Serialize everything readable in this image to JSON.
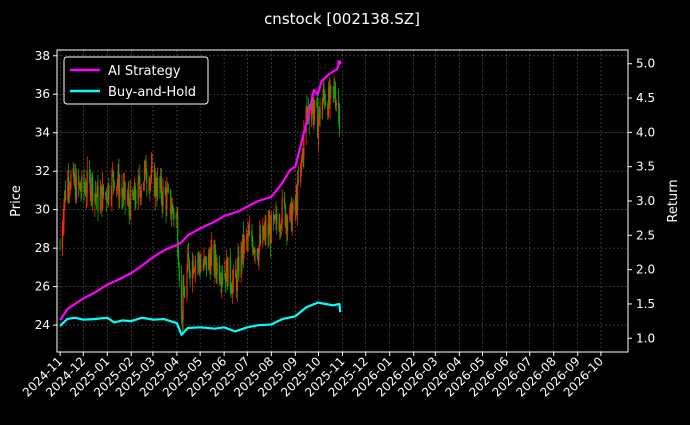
{
  "chart_data": {
    "type": "line",
    "title": "cnstock [002138.SZ]",
    "ylabel": "Price",
    "y2label": "Return",
    "grid": true,
    "legend_position": "top-left",
    "background": "#000000",
    "colors": {
      "ai_strategy": "#ff00ff",
      "buy_and_hold": "#00ffff",
      "candle_up": "#ff2a00",
      "candle_down": "#00b400",
      "grid": "#5a5a5a",
      "axis": "#ffffff"
    },
    "x_tick_labels": [
      "2024-11",
      "2024-12",
      "2025-01",
      "2025-02",
      "2025-03",
      "2025-04",
      "2025-05",
      "2025-06",
      "2025-07",
      "2025-08",
      "2025-09",
      "2025-10",
      "2025-11",
      "2025-12",
      "2026-01",
      "2026-02",
      "2026-03",
      "2026-04",
      "2026-05",
      "2026-06",
      "2026-07",
      "2026-08",
      "2026-09",
      "2026-10"
    ],
    "xlim": [
      "2024-10-28",
      "2026-11-05"
    ],
    "y_ticks": [
      24,
      26,
      28,
      30,
      32,
      34,
      36,
      38
    ],
    "ylim": [
      22.6,
      38.3
    ],
    "y2_ticks": [
      "1.0",
      "1.5",
      "2.0",
      "2.5",
      "3.0",
      "3.5",
      "4.0",
      "4.5",
      "5.0"
    ],
    "y2lim": [
      0.8,
      5.2
    ],
    "series": [
      {
        "name": "AI Strategy",
        "axis": "right",
        "points": [
          [
            "2024-11-01",
            1.26
          ],
          [
            "2024-11-10",
            1.42
          ],
          [
            "2024-11-20",
            1.5
          ],
          [
            "2024-12-01",
            1.58
          ],
          [
            "2024-12-15",
            1.66
          ],
          [
            "2025-01-01",
            1.78
          ],
          [
            "2025-01-15",
            1.85
          ],
          [
            "2025-02-01",
            1.95
          ],
          [
            "2025-02-15",
            2.06
          ],
          [
            "2025-03-01",
            2.18
          ],
          [
            "2025-03-15",
            2.28
          ],
          [
            "2025-04-01",
            2.36
          ],
          [
            "2025-04-07",
            2.4
          ],
          [
            "2025-04-15",
            2.5
          ],
          [
            "2025-05-01",
            2.6
          ],
          [
            "2025-05-20",
            2.7
          ],
          [
            "2025-06-01",
            2.78
          ],
          [
            "2025-06-20",
            2.85
          ],
          [
            "2025-07-01",
            2.92
          ],
          [
            "2025-07-15",
            3.0
          ],
          [
            "2025-08-01",
            3.06
          ],
          [
            "2025-08-15",
            3.26
          ],
          [
            "2025-08-25",
            3.45
          ],
          [
            "2025-09-01",
            3.5
          ],
          [
            "2025-09-10",
            3.9
          ],
          [
            "2025-09-20",
            4.35
          ],
          [
            "2025-09-25",
            4.62
          ],
          [
            "2025-09-30",
            4.55
          ],
          [
            "2025-10-05",
            4.75
          ],
          [
            "2025-10-15",
            4.85
          ],
          [
            "2025-10-25",
            4.92
          ],
          [
            "2025-10-28",
            5.02
          ]
        ]
      },
      {
        "name": "Buy-and-Hold",
        "axis": "right",
        "points": [
          [
            "2024-11-01",
            1.18
          ],
          [
            "2024-11-10",
            1.28
          ],
          [
            "2024-11-20",
            1.3
          ],
          [
            "2024-12-01",
            1.27
          ],
          [
            "2024-12-15",
            1.28
          ],
          [
            "2025-01-01",
            1.3
          ],
          [
            "2025-01-10",
            1.23
          ],
          [
            "2025-01-20",
            1.26
          ],
          [
            "2025-02-01",
            1.25
          ],
          [
            "2025-02-15",
            1.3
          ],
          [
            "2025-03-01",
            1.27
          ],
          [
            "2025-03-15",
            1.28
          ],
          [
            "2025-04-01",
            1.22
          ],
          [
            "2025-04-07",
            1.05
          ],
          [
            "2025-04-15",
            1.15
          ],
          [
            "2025-05-01",
            1.16
          ],
          [
            "2025-05-20",
            1.14
          ],
          [
            "2025-06-01",
            1.16
          ],
          [
            "2025-06-15",
            1.1
          ],
          [
            "2025-07-01",
            1.16
          ],
          [
            "2025-07-15",
            1.19
          ],
          [
            "2025-08-01",
            1.2
          ],
          [
            "2025-08-15",
            1.28
          ],
          [
            "2025-09-01",
            1.32
          ],
          [
            "2025-09-15",
            1.45
          ],
          [
            "2025-09-30",
            1.52
          ],
          [
            "2025-10-10",
            1.5
          ],
          [
            "2025-10-20",
            1.48
          ],
          [
            "2025-10-28",
            1.5
          ],
          [
            "2025-10-29",
            1.38
          ]
        ]
      }
    ],
    "price_series": {
      "name": "Price",
      "axis": "left",
      "style": "candlestick",
      "points": [
        [
          "2024-11-01",
          28.0
        ],
        [
          "2024-11-06",
          30.5
        ],
        [
          "2024-11-12",
          31.8
        ],
        [
          "2024-11-20",
          31.2
        ],
        [
          "2024-12-01",
          31.0
        ],
        [
          "2024-12-10",
          31.5
        ],
        [
          "2024-12-20",
          30.5
        ],
        [
          "2025-01-01",
          31.0
        ],
        [
          "2025-01-10",
          31.8
        ],
        [
          "2025-01-20",
          30.8
        ],
        [
          "2025-02-01",
          30.2
        ],
        [
          "2025-02-10",
          31.0
        ],
        [
          "2025-02-20",
          32.0
        ],
        [
          "2025-03-01",
          31.5
        ],
        [
          "2025-03-10",
          31.0
        ],
        [
          "2025-03-20",
          30.5
        ],
        [
          "2025-04-01",
          29.5
        ],
        [
          "2025-04-07",
          24.5
        ],
        [
          "2025-04-15",
          27.0
        ],
        [
          "2025-04-25",
          27.5
        ],
        [
          "2025-05-05",
          27.0
        ],
        [
          "2025-05-15",
          27.5
        ],
        [
          "2025-05-25",
          27.0
        ],
        [
          "2025-06-05",
          26.8
        ],
        [
          "2025-06-15",
          26.0
        ],
        [
          "2025-06-25",
          28.0
        ],
        [
          "2025-07-05",
          28.5
        ],
        [
          "2025-07-15",
          28.0
        ],
        [
          "2025-07-25",
          28.8
        ],
        [
          "2025-08-05",
          29.0
        ],
        [
          "2025-08-15",
          30.0
        ],
        [
          "2025-08-25",
          29.5
        ],
        [
          "2025-09-01",
          30.0
        ],
        [
          "2025-09-08",
          32.0
        ],
        [
          "2025-09-15",
          35.0
        ],
        [
          "2025-09-22",
          35.5
        ],
        [
          "2025-09-30",
          34.5
        ],
        [
          "2025-10-08",
          36.0
        ],
        [
          "2025-10-15",
          35.5
        ],
        [
          "2025-10-22",
          36.2
        ],
        [
          "2025-10-28",
          35.0
        ]
      ]
    }
  }
}
